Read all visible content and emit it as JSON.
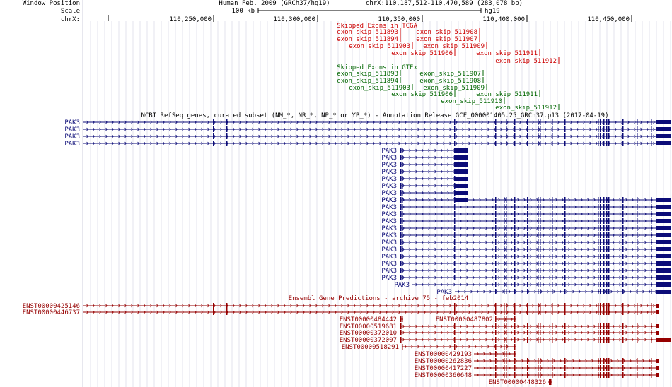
{
  "header": {
    "window_position_label": "Window Position",
    "scale_label": "Scale",
    "chrom_label": "chrX:",
    "assembly": "Human Feb. 2009 (GRCh37/hg19)",
    "position": "chrX:110,187,512-110,470,589 (283,078 bp)",
    "scale_value": "100 kb",
    "scale_assembly": "hg19",
    "ruler_ticks": [
      "110,250,000",
      "110,300,000",
      "110,350,000",
      "110,400,000",
      "110,450,000"
    ]
  },
  "tracks": {
    "tcga_title": "Skipped Exons in TCGA",
    "tcga_items": [
      "exon_skip_511893",
      "exon_skip_511908",
      "exon_skip_511894",
      "exon_skip_511907",
      "exon_skip_511903",
      "exon_skip_511909",
      "exon_skip_511906",
      "exon_skip_511911",
      "exon_skip_511912"
    ],
    "gtex_title": "Skipped Exons in GTEx",
    "gtex_items": [
      "exon_skip_511893",
      "exon_skip_511907",
      "exon_skip_511894",
      "exon_skip_511908",
      "exon_skip_511903",
      "exon_skip_511909",
      "exon_skip_511906",
      "exon_skip_511911",
      "exon_skip_511910",
      "exon_skip_511912"
    ],
    "refseq_title": "NCBI RefSeq genes, curated subset (NM_*, NR_*, NP_* or YP_*) - Annotation Release GCF_000001405.25_GRCh37.p13 (2017-04-19)",
    "refseq_gene": "PAK3",
    "ensembl_title": "Ensembl Gene Predictions - archive 75 - feb2014",
    "ensembl_items": [
      "ENST00000425146",
      "ENST00000446737",
      "ENST00000484442",
      "ENST00000487802",
      "ENST00000519681",
      "ENST00000372010",
      "ENST00000372007",
      "ENST00000518291",
      "ENST00000429193",
      "ENST00000262836",
      "ENST00000417227",
      "ENST00000360648",
      "ENST00000448326"
    ]
  },
  "colors": {
    "tcga": "#cc0000",
    "gtex": "#006600",
    "refseq": "#0c0c78",
    "ensembl": "#960000",
    "text": "#000000"
  }
}
